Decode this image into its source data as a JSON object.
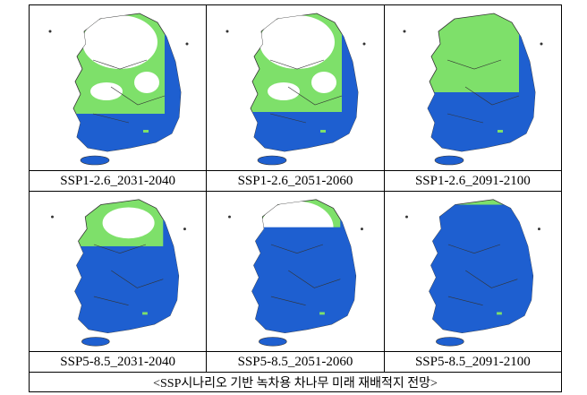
{
  "figure": {
    "panels": [
      {
        "label": "SSP1-2.6_2031-2040"
      },
      {
        "label": "SSP1-2.6_2051-2060"
      },
      {
        "label": "SSP1-2.6_2091-2100"
      },
      {
        "label": "SSP5-8.5_2031-2040"
      },
      {
        "label": "SSP5-8.5_2051-2060"
      },
      {
        "label": "SSP5-8.5_2091-2100"
      }
    ],
    "caption": "<SSP시나리오 기반 녹차용 차나무 미래 재배적지 전망>"
  }
}
